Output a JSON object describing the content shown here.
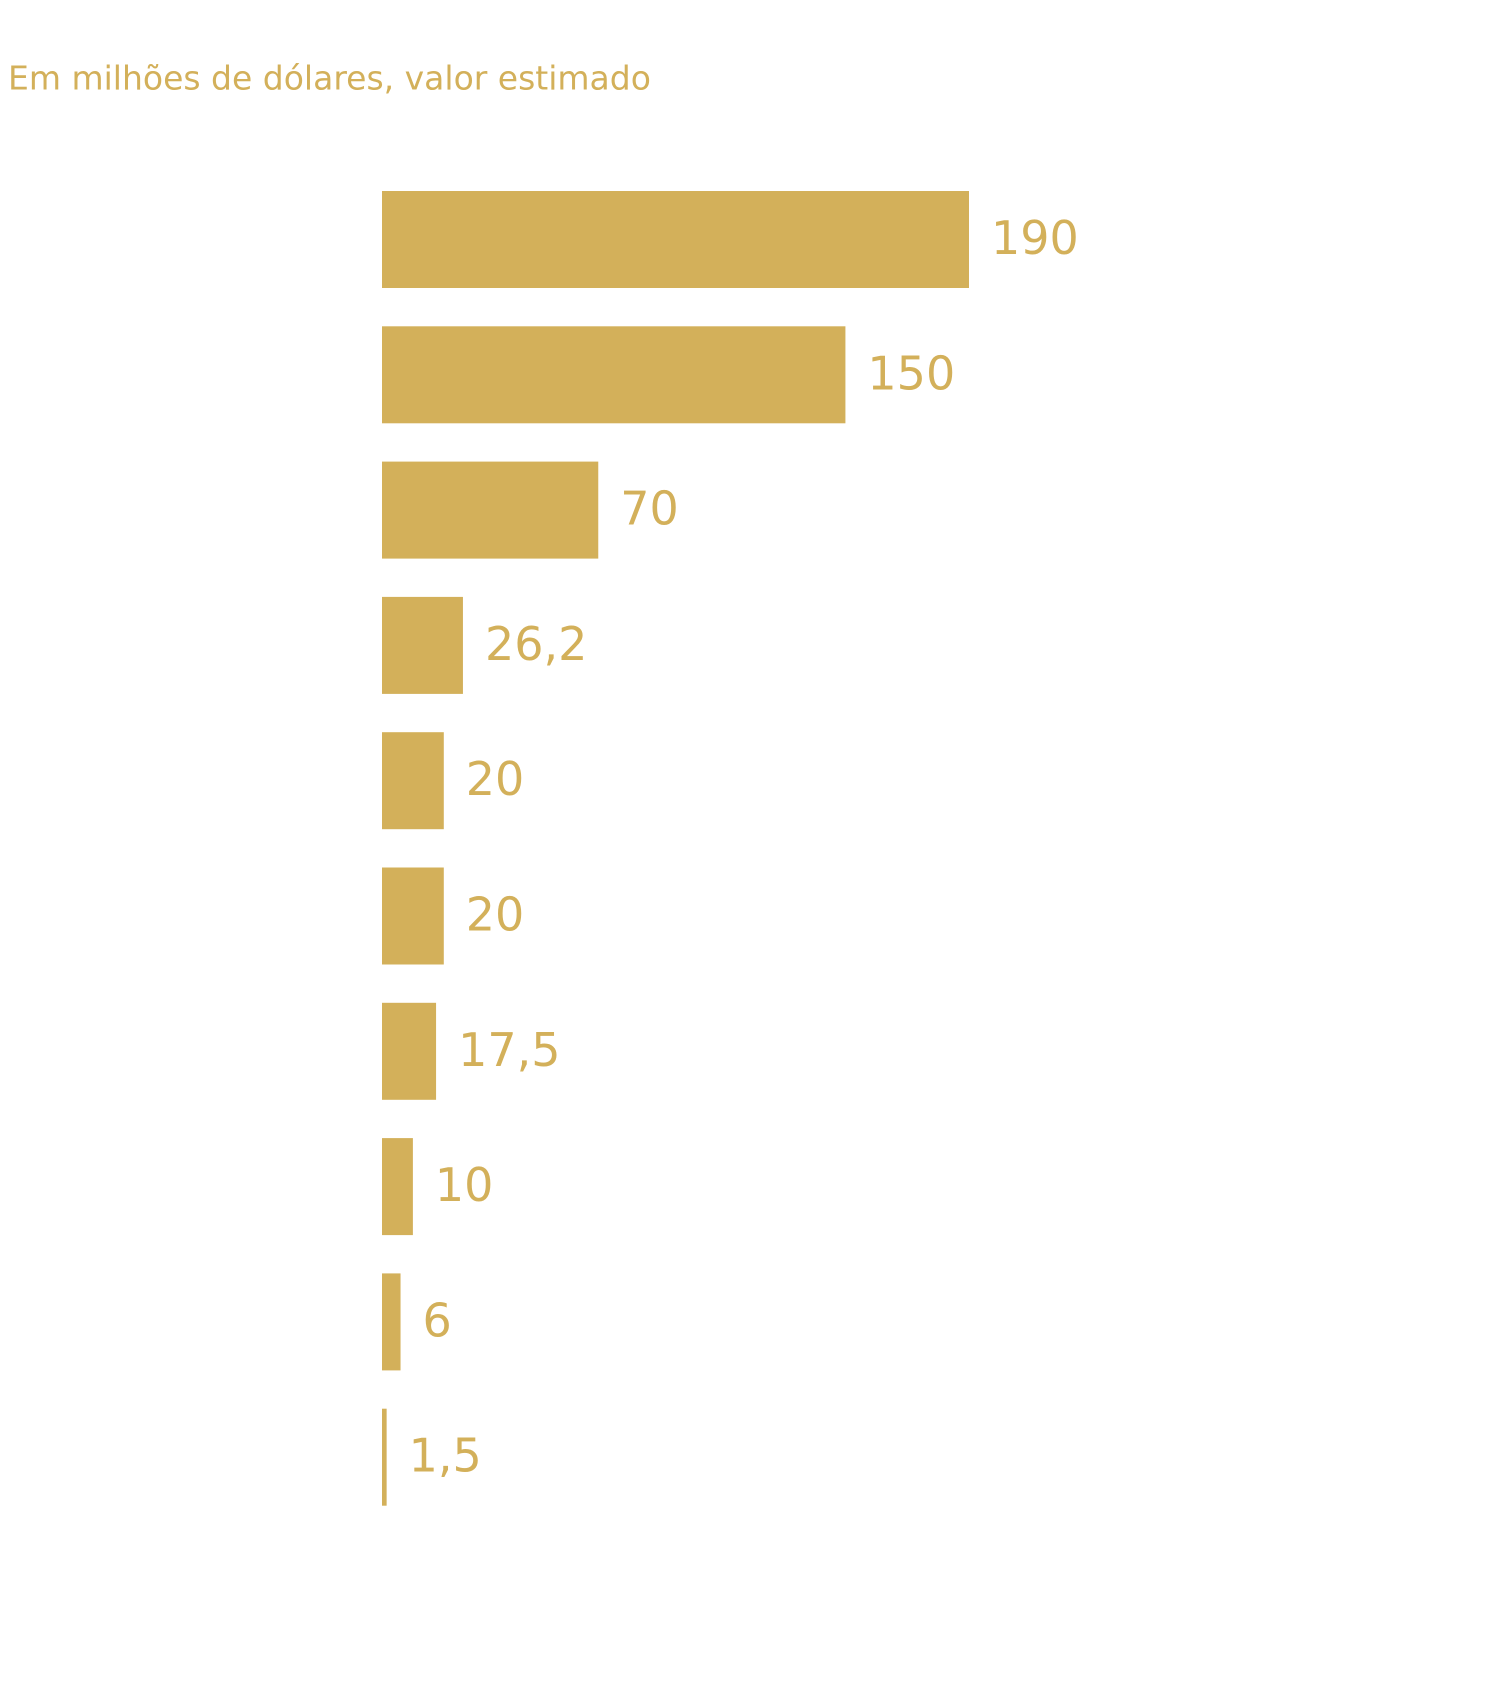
{
  "chart_data": {
    "type": "hbar",
    "subtitle": "Em milhões de dólares, valor estimado",
    "values": [
      190,
      150,
      70,
      26.2,
      20,
      20,
      17.5,
      10,
      6,
      1.5
    ],
    "value_labels": [
      "190",
      "150",
      "70",
      "26,2",
      "20",
      "20",
      "17,5",
      "10",
      "6",
      "1,5"
    ],
    "color": "#d3b05a"
  }
}
